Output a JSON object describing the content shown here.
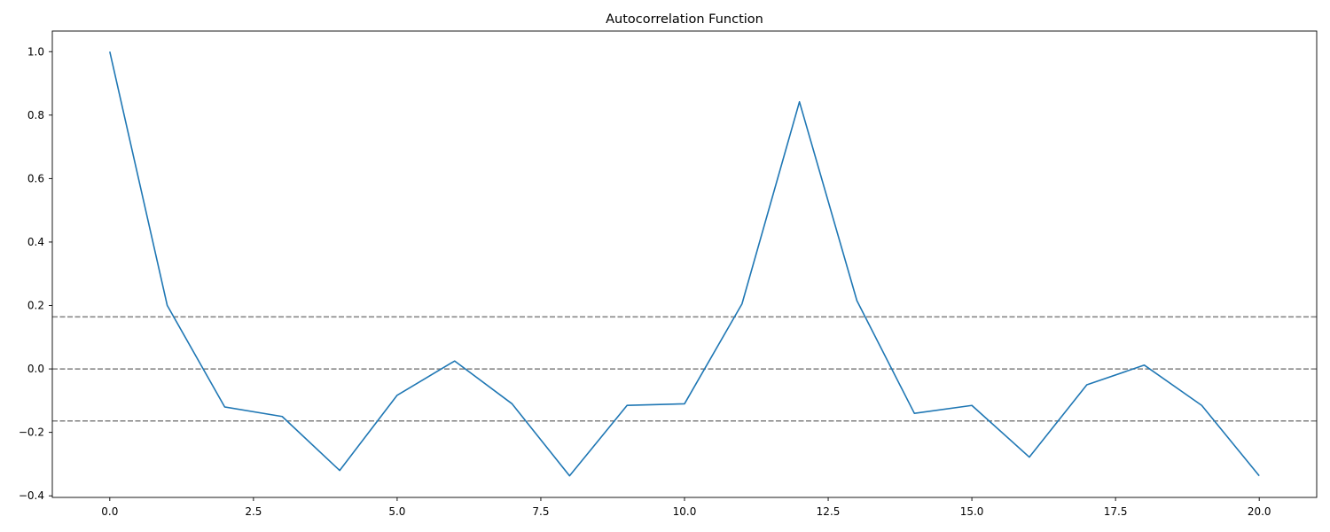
{
  "chart_data": {
    "type": "line",
    "title": "Autocorrelation Function",
    "xlabel": "",
    "ylabel": "",
    "xlim": [
      -1,
      21
    ],
    "ylim": [
      -0.405,
      1.065
    ],
    "x_ticks": [
      0.0,
      2.5,
      5.0,
      7.5,
      10.0,
      12.5,
      15.0,
      17.5,
      20.0
    ],
    "x_tick_labels": [
      "0.0",
      "2.5",
      "5.0",
      "7.5",
      "10.0",
      "12.5",
      "15.0",
      "17.5",
      "20.0"
    ],
    "y_ticks": [
      -0.4,
      -0.2,
      0.0,
      0.2,
      0.4,
      0.6,
      0.8,
      1.0
    ],
    "y_tick_labels": [
      "−0.4",
      "−0.2",
      "0.0",
      "0.2",
      "0.4",
      "0.6",
      "0.8",
      "1.0"
    ],
    "grid": false,
    "series": [
      {
        "color": "#1f77b4",
        "x": [
          0,
          1,
          2,
          3,
          4,
          5,
          6,
          7,
          8,
          9,
          10,
          11,
          12,
          13,
          14,
          15,
          16,
          17,
          18,
          19,
          20
        ],
        "values": [
          1.0,
          0.2,
          -0.12,
          -0.15,
          -0.32,
          -0.083,
          0.025,
          -0.11,
          -0.337,
          -0.115,
          -0.11,
          0.205,
          0.842,
          0.215,
          -0.14,
          -0.115,
          -0.278,
          -0.05,
          0.012,
          -0.115,
          -0.337
        ]
      }
    ],
    "reference_lines": [
      {
        "y": 0.164,
        "color": "#808080",
        "style": "dashed"
      },
      {
        "y": 0.0,
        "color": "#808080",
        "style": "dashed"
      },
      {
        "y": -0.164,
        "color": "#808080",
        "style": "dashed"
      }
    ]
  }
}
